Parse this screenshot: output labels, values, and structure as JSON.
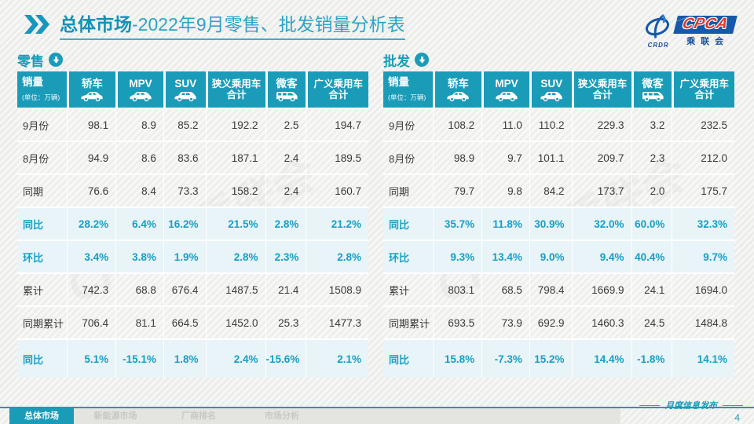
{
  "accent": {
    "teal": "#1a9cb9",
    "pct_text": "#149fc6",
    "pct_bg": "#e8f4f8",
    "logo_blue": "#1659a8",
    "logo_red": "#e0352c"
  },
  "header": {
    "title_bold": "总体市场",
    "title_rest": "-2022年9月零售、批发销量分析表"
  },
  "logo": {
    "crdr": "CRDR",
    "cpca": "CPCA",
    "cn": "乘联会"
  },
  "watermark": "CPCA 乘联会",
  "table_common": {
    "sales_label": "销量",
    "sales_unit": "(单位：万辆)",
    "columns": [
      {
        "label": "轿车",
        "icon": "car"
      },
      {
        "label": "MPV",
        "icon": "mpv"
      },
      {
        "label": "SUV",
        "icon": "suv"
      },
      {
        "label": "狭义乘用车",
        "label2": "合计"
      },
      {
        "label": "微客",
        "icon": "van"
      },
      {
        "label": "广义乘用车",
        "label2": "合计"
      }
    ]
  },
  "retail": {
    "section": "零售",
    "rows": [
      {
        "label": "9月份",
        "pct": false,
        "values": [
          "98.1",
          "8.9",
          "85.2",
          "192.2",
          "2.5",
          "194.7"
        ]
      },
      {
        "label": "8月份",
        "pct": false,
        "values": [
          "94.9",
          "8.6",
          "83.6",
          "187.1",
          "2.4",
          "189.5"
        ]
      },
      {
        "label": "同期",
        "pct": false,
        "values": [
          "76.6",
          "8.4",
          "73.3",
          "158.2",
          "2.4",
          "160.7"
        ]
      },
      {
        "label": "同比",
        "pct": true,
        "values": [
          "28.2%",
          "6.4%",
          "16.2%",
          "21.5%",
          "2.8%",
          "21.2%"
        ]
      },
      {
        "label": "环比",
        "pct": true,
        "values": [
          "3.4%",
          "3.8%",
          "1.9%",
          "2.8%",
          "2.3%",
          "2.8%"
        ]
      },
      {
        "label": "累计",
        "pct": false,
        "values": [
          "742.3",
          "68.8",
          "676.4",
          "1487.5",
          "21.4",
          "1508.9"
        ]
      },
      {
        "label": "同期累计",
        "pct": false,
        "values": [
          "706.4",
          "81.1",
          "664.5",
          "1452.0",
          "25.3",
          "1477.3"
        ]
      },
      {
        "label": "同比",
        "pct": true,
        "values": [
          "5.1%",
          "-15.1%",
          "1.8%",
          "2.4%",
          "-15.6%",
          "2.1%"
        ]
      }
    ]
  },
  "wholesale": {
    "section": "批发",
    "rows": [
      {
        "label": "9月份",
        "pct": false,
        "values": [
          "108.2",
          "11.0",
          "110.2",
          "229.3",
          "3.2",
          "232.5"
        ]
      },
      {
        "label": "8月份",
        "pct": false,
        "values": [
          "98.9",
          "9.7",
          "101.1",
          "209.7",
          "2.3",
          "212.0"
        ]
      },
      {
        "label": "同期",
        "pct": false,
        "values": [
          "79.7",
          "9.8",
          "84.2",
          "173.7",
          "2.0",
          "175.7"
        ]
      },
      {
        "label": "同比",
        "pct": true,
        "values": [
          "35.7%",
          "11.8%",
          "30.9%",
          "32.0%",
          "60.0%",
          "32.3%"
        ]
      },
      {
        "label": "环比",
        "pct": true,
        "values": [
          "9.3%",
          "13.4%",
          "9.0%",
          "9.4%",
          "40.4%",
          "9.7%"
        ]
      },
      {
        "label": "累计",
        "pct": false,
        "values": [
          "803.1",
          "68.5",
          "798.4",
          "1669.9",
          "24.1",
          "1694.0"
        ]
      },
      {
        "label": "同期累计",
        "pct": false,
        "values": [
          "693.5",
          "73.9",
          "692.9",
          "1460.3",
          "24.5",
          "1484.8"
        ]
      },
      {
        "label": "同比",
        "pct": true,
        "values": [
          "15.8%",
          "-7.3%",
          "15.2%",
          "14.4%",
          "-1.8%",
          "14.1%"
        ]
      }
    ]
  },
  "footer": {
    "tabs": [
      {
        "label": "总体市场",
        "active": true
      },
      {
        "label": "新能源市场",
        "active": false
      },
      {
        "label": "厂商排名",
        "active": false
      },
      {
        "label": "市场分析",
        "active": false
      }
    ],
    "note": "月度信息发布",
    "page": "4"
  }
}
